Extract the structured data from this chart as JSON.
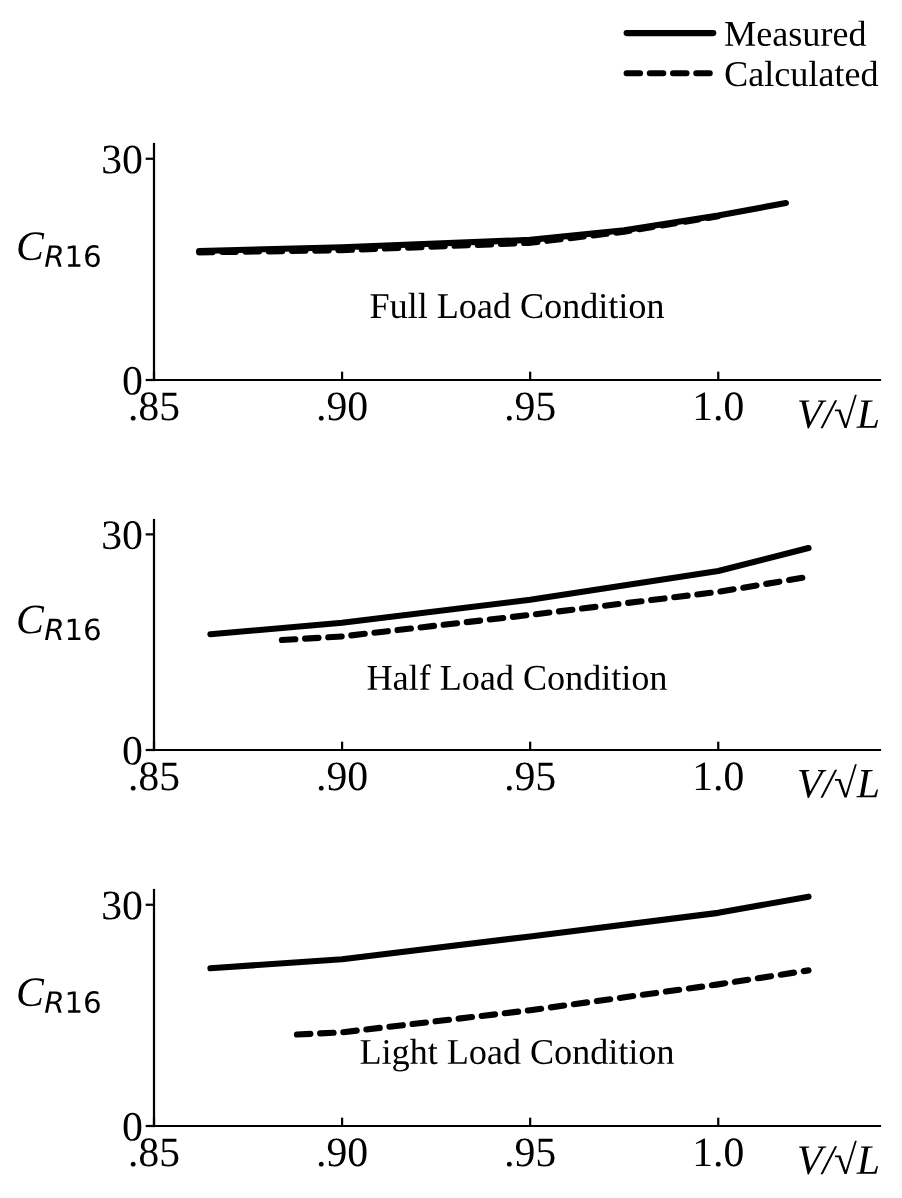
{
  "chart_data": [
    {
      "type": "line",
      "legend": "top right",
      "xlabel": "V/√L",
      "ylabel": "C$_{R16}$",
      "annotations": [
        "Full Load Condition"
      ],
      "xlim": [
        0.85,
        1.043
      ],
      "ylim": [
        0,
        32
      ],
      "xticks": [
        {
          "value": 0.85,
          "label": ".85"
        },
        {
          "value": 0.9,
          "label": ".90"
        },
        {
          "value": 0.95,
          "label": ".95"
        },
        {
          "value": 1.0,
          "label": "1.0"
        }
      ],
      "yticks": [
        0,
        30
      ],
      "series": [
        {
          "name": "Measured",
          "color": "#000000",
          "line_style": "solid",
          "x": [
            0.862,
            0.9,
            0.95,
            0.975,
            1.0,
            1.018
          ],
          "values": [
            17.5,
            18.0,
            19.0,
            20.3,
            22.3,
            24.0
          ]
        },
        {
          "name": "Calculated",
          "color": "#000000",
          "line_style": "dashed",
          "x": [
            0.862,
            0.9,
            0.95,
            0.975,
            1.0
          ],
          "values": [
            17.3,
            17.6,
            18.6,
            20.1,
            22.2
          ]
        }
      ]
    },
    {
      "type": "line",
      "xlabel": "V/√L",
      "ylabel": "C$_{R16}$",
      "annotations": [
        "Half Load Condition"
      ],
      "xlim": [
        0.85,
        1.043
      ],
      "ylim": [
        0,
        32
      ],
      "xticks": [
        {
          "value": 0.85,
          "label": ".85"
        },
        {
          "value": 0.9,
          "label": ".90"
        },
        {
          "value": 0.95,
          "label": ".95"
        },
        {
          "value": 1.0,
          "label": "1.0"
        }
      ],
      "yticks": [
        0,
        30
      ],
      "series": [
        {
          "color": "#000000",
          "line_style": "solid",
          "x": [
            0.865,
            0.9,
            0.95,
            1.0,
            1.024
          ],
          "values": [
            16.1,
            17.7,
            20.9,
            24.9,
            28.1
          ]
        },
        {
          "color": "#000000",
          "line_style": "dashed",
          "x": [
            0.884,
            0.9,
            0.95,
            1.0,
            1.024
          ],
          "values": [
            15.3,
            15.8,
            18.8,
            22.0,
            24.1
          ]
        }
      ]
    },
    {
      "type": "line",
      "xlabel": "V/√L",
      "ylabel": "C$_{R16}$",
      "annotations": [
        "Light Load Condition"
      ],
      "xlim": [
        0.85,
        1.043
      ],
      "ylim": [
        0,
        32
      ],
      "xticks": [
        {
          "value": 0.85,
          "label": ".85"
        },
        {
          "value": 0.9,
          "label": ".90"
        },
        {
          "value": 0.95,
          "label": ".95"
        },
        {
          "value": 1.0,
          "label": "1.0"
        }
      ],
      "yticks": [
        0,
        30
      ],
      "series": [
        {
          "color": "#000000",
          "line_style": "solid",
          "x": [
            0.865,
            0.9,
            0.95,
            1.0,
            1.024
          ],
          "values": [
            21.4,
            22.6,
            25.7,
            28.9,
            31.1
          ]
        },
        {
          "color": "#000000",
          "line_style": "dashed",
          "x": [
            0.888,
            0.9,
            0.95,
            1.0,
            1.024
          ],
          "values": [
            12.4,
            12.7,
            15.7,
            19.2,
            21.1
          ]
        }
      ]
    }
  ]
}
